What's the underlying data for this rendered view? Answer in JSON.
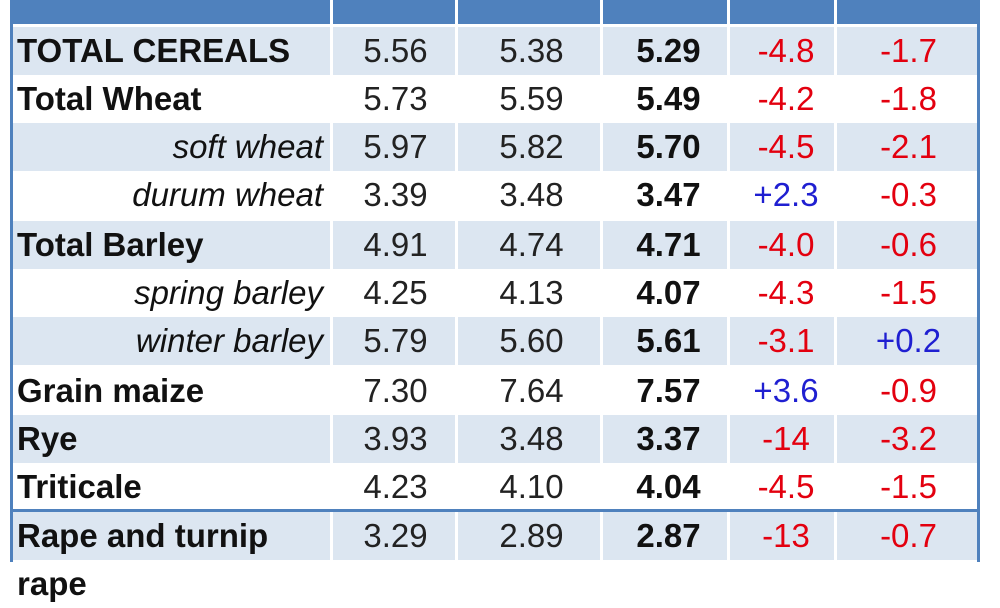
{
  "rows": [
    {
      "name": "TOTAL CEREALS",
      "sub": false,
      "v1": "5.56",
      "v2": "5.38",
      "v3": "5.29",
      "d1": "-4.8",
      "d2": "-1.7"
    },
    {
      "name": "Total Wheat",
      "sub": false,
      "v1": "5.73",
      "v2": "5.59",
      "v3": "5.49",
      "d1": "-4.2",
      "d2": "-1.8"
    },
    {
      "name": "soft wheat",
      "sub": true,
      "v1": "5.97",
      "v2": "5.82",
      "v3": "5.70",
      "d1": "-4.5",
      "d2": "-2.1"
    },
    {
      "name": "durum wheat",
      "sub": true,
      "v1": "3.39",
      "v2": "3.48",
      "v3": "3.47",
      "d1": "+2.3",
      "d2": "-0.3"
    },
    {
      "name": "Total Barley",
      "sub": false,
      "v1": "4.91",
      "v2": "4.74",
      "v3": "4.71",
      "d1": "-4.0",
      "d2": "-0.6"
    },
    {
      "name": "spring barley",
      "sub": true,
      "v1": "4.25",
      "v2": "4.13",
      "v3": "4.07",
      "d1": "-4.3",
      "d2": "-1.5"
    },
    {
      "name": "winter barley",
      "sub": true,
      "v1": "5.79",
      "v2": "5.60",
      "v3": "5.61",
      "d1": "-3.1",
      "d2": "+0.2"
    },
    {
      "name": "Grain maize",
      "sub": false,
      "v1": "7.30",
      "v2": "7.64",
      "v3": "7.57",
      "d1": "+3.6",
      "d2": "-0.9"
    },
    {
      "name": "Rye",
      "sub": false,
      "v1": "3.93",
      "v2": "3.48",
      "v3": "3.37",
      "d1": "-14",
      "d2": "-3.2"
    },
    {
      "name": "Triticale",
      "sub": false,
      "v1": "4.23",
      "v2": "4.10",
      "v3": "4.04",
      "d1": "-4.5",
      "d2": "-1.5"
    },
    {
      "name": "Rape and turnip rape",
      "sub": false,
      "v1": "3.29",
      "v2": "2.89",
      "v3": "2.87",
      "d1": "-13",
      "d2": "-0.7"
    }
  ],
  "colors": {
    "header": "#4f81bd",
    "shade": "#dce6f1",
    "negative": "#e3000f",
    "positive": "#1f1fd1"
  }
}
